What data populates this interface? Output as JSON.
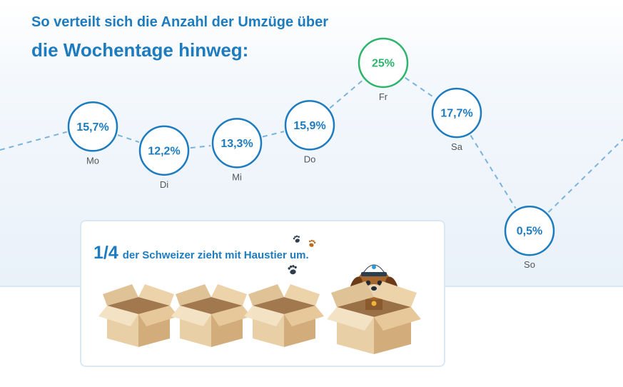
{
  "title": {
    "line1": "So verteilt sich die Anzahl der Umzüge über",
    "line2": "die Wochentage hinweg:"
  },
  "chart_data": {
    "type": "line",
    "categories": [
      "Mo",
      "Di",
      "Mi",
      "Do",
      "Fr",
      "Sa",
      "So"
    ],
    "values": [
      15.7,
      12.2,
      13.3,
      15.9,
      25,
      17.7,
      0.5
    ],
    "labels": [
      "15,7%",
      "12,2%",
      "13,3%",
      "15,9%",
      "25%",
      "17,7%",
      "0,5%"
    ],
    "unit": "%",
    "highlight_index": 4,
    "colors": {
      "line": "#7ab3dc",
      "circle": "#1d7bbf",
      "highlight": "#2db56b",
      "day_label": "#555555"
    }
  },
  "callout": {
    "fraction": "1/4",
    "text": "der Schweizer zieht mit Haustier um.",
    "boxes_total": 4,
    "boxes_with_pet": 1,
    "icons": [
      "paw-print-icon",
      "moving-box-icon",
      "dog-in-box-icon"
    ]
  }
}
